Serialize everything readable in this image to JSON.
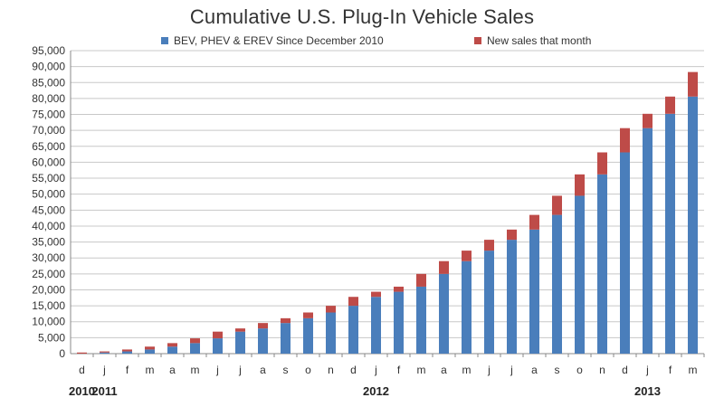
{
  "chart_data": {
    "type": "bar",
    "stacked": true,
    "title": "Cumulative U.S. Plug-In Vehicle Sales",
    "categories": [
      "d",
      "j",
      "f",
      "m",
      "a",
      "m",
      "j",
      "j",
      "a",
      "s",
      "o",
      "n",
      "d",
      "j",
      "f",
      "m",
      "a",
      "m",
      "j",
      "j",
      "a",
      "s",
      "o",
      "n",
      "d",
      "j",
      "f",
      "m"
    ],
    "year_labels": [
      {
        "label": "2010",
        "category_index": 0
      },
      {
        "label": "2011",
        "category_index": 1
      },
      {
        "label": "2012",
        "category_index": 13
      },
      {
        "label": "2013",
        "category_index": 25
      }
    ],
    "series": [
      {
        "name": "BEV, PHEV & EREV Since December 2010",
        "color": "#4a7ebb",
        "values": [
          0,
          350,
          700,
          1300,
          2200,
          3300,
          4800,
          6900,
          7900,
          9600,
          11100,
          12900,
          15000,
          17800,
          19400,
          21000,
          25000,
          29000,
          32300,
          35700,
          38900,
          43500,
          49500,
          56200,
          63100,
          70700,
          75200,
          80600
        ]
      },
      {
        "name": "New sales that month",
        "color": "#be4b48",
        "values": [
          350,
          350,
          600,
          900,
          1100,
          1500,
          2100,
          1000,
          1700,
          1500,
          1800,
          2100,
          2800,
          1600,
          1600,
          4000,
          4000,
          3300,
          3400,
          3200,
          4600,
          6000,
          6700,
          6900,
          7600,
          4500,
          5400,
          7700
        ]
      }
    ],
    "ylim": [
      0,
      95000
    ],
    "ytick_step": 5000,
    "grid": true,
    "legend_position": "top"
  }
}
